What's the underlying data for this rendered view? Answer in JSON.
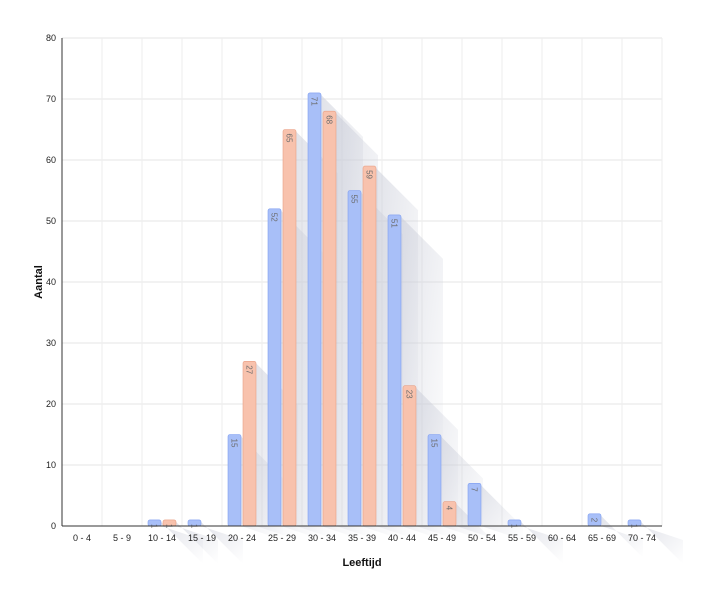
{
  "chart_data": {
    "type": "bar",
    "title": "",
    "xlabel": "Leeftijd",
    "ylabel": "Aantal",
    "ylim": [
      0,
      80
    ],
    "yticks": [
      0,
      10,
      20,
      30,
      40,
      50,
      60,
      70,
      80
    ],
    "grid": true,
    "legend": "none",
    "categories": [
      "0 - 4",
      "5 - 9",
      "10 - 14",
      "15 - 19",
      "20 - 24",
      "25 - 29",
      "30 - 34",
      "35 - 39",
      "40 - 44",
      "45 - 49",
      "50 - 54",
      "55 - 59",
      "60 - 64",
      "65 - 69",
      "70 - 74"
    ],
    "series": [
      {
        "color": "#a8bff8",
        "edge": "#7f9ef0",
        "values": [
          0,
          0,
          1,
          1,
          15,
          52,
          71,
          55,
          51,
          15,
          7,
          1,
          0,
          2,
          1
        ]
      },
      {
        "color": "#f8c2ad",
        "edge": "#e89f85",
        "values": [
          0,
          0,
          1,
          0,
          27,
          65,
          68,
          59,
          23,
          4,
          0,
          0,
          0,
          0,
          0
        ]
      }
    ],
    "label_color": "#6b6b6b"
  }
}
